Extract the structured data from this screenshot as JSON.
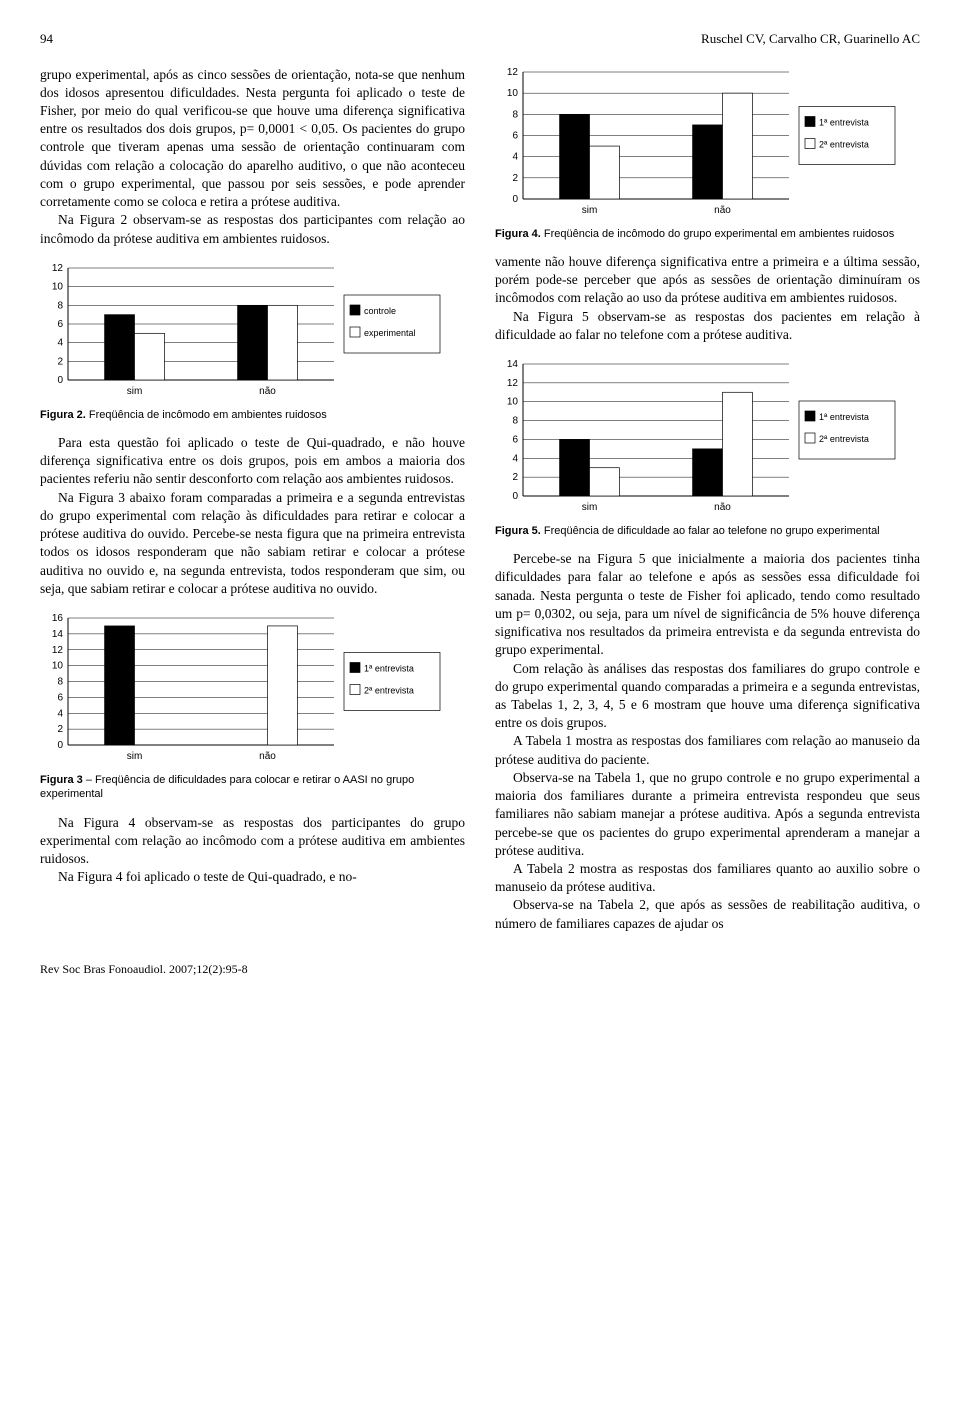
{
  "page_number": "94",
  "authors": "Ruschel CV, Carvalho CR, Guarinello AC",
  "footer": "Rev Soc Bras Fonoaudiol. 2007;12(2):95-8",
  "left_col": {
    "p1": "grupo experimental, após as cinco sessões de orientação, nota-se que nenhum dos idosos apresentou dificuldades. Nesta pergunta foi aplicado o teste de Fisher, por meio do qual verificou-se que houve uma diferença significativa entre os resultados dos dois grupos, p= 0,0001 < 0,05. Os pacientes do grupo controle que tiveram apenas uma sessão de orientação continuaram com dúvidas com relação a colocação do aparelho auditivo, o que não aconteceu com o grupo experimental, que passou por seis sessões, e pode aprender corretamente como se coloca e retira a prótese auditiva.",
    "p2": "Na Figura 2 observam-se as respostas dos participantes com relação ao incômodo da prótese auditiva em ambientes ruidosos.",
    "p3": "Para esta questão foi aplicado o teste de Qui-quadrado, e não houve diferença significativa entre os dois grupos, pois em ambos a maioria dos pacientes referiu não sentir desconforto com relação aos ambientes ruidosos.",
    "p4": "Na Figura 3 abaixo foram comparadas a primeira e a segunda entrevistas do grupo experimental com relação às dificuldades para retirar e colocar a prótese auditiva do ouvido. Percebe-se nesta figura que na primeira entrevista todos os idosos responderam que não sabiam retirar e colocar a prótese auditiva no ouvido e, na segunda entrevista, todos responderam que sim, ou seja, que sabiam retirar e colocar a prótese auditiva no ouvido.",
    "p5": "Na Figura 4 observam-se as respostas dos participantes do grupo experimental com relação ao incômodo com a prótese auditiva em ambientes ruidosos.",
    "p6": "Na Figura 4 foi aplicado o teste de Qui-quadrado, e no-"
  },
  "right_col": {
    "p1": "vamente não houve diferença significativa entre a primeira e a última sessão, porém pode-se perceber que após as sessões de orientação diminuíram os incômodos com relação ao uso da prótese auditiva em ambientes ruidosos.",
    "p2": "Na Figura 5 observam-se as respostas dos pacientes em relação à dificuldade ao falar no telefone com a prótese auditiva.",
    "p3": "Percebe-se na Figura 5 que inicialmente a maioria dos pacientes tinha dificuldades para falar ao telefone e após as sessões essa dificuldade foi sanada. Nesta pergunta o teste de Fisher foi aplicado, tendo como resultado um p= 0,0302, ou seja, para um nível de significância de 5% houve diferença significativa nos resultados da primeira entrevista e da segunda entrevista do grupo experimental.",
    "p4": "Com relação às análises das respostas dos familiares do grupo controle e do grupo experimental quando comparadas a primeira e a segunda entrevistas, as Tabelas 1, 2, 3, 4, 5 e 6 mostram que houve uma diferença significativa entre os dois grupos.",
    "p5": "A Tabela 1 mostra as respostas dos familiares com relação ao manuseio da prótese auditiva do paciente.",
    "p6": "Observa-se na Tabela 1, que no grupo controle e no grupo experimental a maioria dos familiares durante a primeira entrevista respondeu que seus familiares não sabiam manejar a prótese auditiva. Após a segunda entrevista percebe-se que os pacientes do grupo experimental aprenderam a manejar a prótese auditiva.",
    "p7": "A Tabela 2 mostra as respostas dos familiares quanto ao auxilio sobre o manuseio da prótese auditiva.",
    "p8": "Observa-se na Tabela 2, que após as sessões de reabilitação auditiva, o número de familiares capazes de ajudar os"
  },
  "fig2": {
    "caption_bold": "Figura 2.",
    "caption_rest": " Freqüência de incômodo em ambientes ruidosos",
    "type": "bar",
    "categories": [
      "sim",
      "não"
    ],
    "series": [
      {
        "label": "controle",
        "color": "#000000",
        "values": [
          7,
          8
        ]
      },
      {
        "label": "experimental",
        "color": "#ffffff",
        "values": [
          5,
          8
        ]
      }
    ],
    "ylim": [
      0,
      12
    ],
    "ytick_step": 2,
    "bar_width": 0.45,
    "grid_color": "#000000",
    "axis_color": "#000000",
    "font_family": "Arial",
    "tick_fontsize": 10,
    "legend_fontsize": 9
  },
  "fig3": {
    "caption_bold": "Figura 3",
    "caption_rest": " – Freqüência de dificuldades para colocar e retirar o AASI no grupo experimental",
    "type": "bar",
    "categories": [
      "sim",
      "não"
    ],
    "series": [
      {
        "label": "1ª entrevista",
        "color": "#000000",
        "values": [
          15,
          0
        ]
      },
      {
        "label": "2ª entrevista",
        "color": "#ffffff",
        "values": [
          0,
          15
        ]
      }
    ],
    "ylim": [
      0,
      16
    ],
    "ytick_step": 2,
    "bar_width": 0.45,
    "grid_color": "#000000",
    "axis_color": "#000000",
    "font_family": "Arial",
    "tick_fontsize": 10,
    "legend_fontsize": 9
  },
  "fig4": {
    "caption_bold": "Figura 4.",
    "caption_rest": " Freqüência de incômodo do grupo experimental em ambientes ruidosos",
    "type": "bar",
    "categories": [
      "sim",
      "não"
    ],
    "series": [
      {
        "label": "1ª entrevista",
        "color": "#000000",
        "values": [
          8,
          7
        ]
      },
      {
        "label": "2ª entrevista",
        "color": "#ffffff",
        "values": [
          5,
          10
        ]
      }
    ],
    "ylim": [
      0,
      12
    ],
    "ytick_step": 2,
    "bar_width": 0.45,
    "grid_color": "#000000",
    "axis_color": "#000000",
    "font_family": "Arial",
    "tick_fontsize": 10,
    "legend_fontsize": 9
  },
  "fig5": {
    "caption_bold": "Figura 5.",
    "caption_rest": " Freqüência de dificuldade ao falar ao telefone no grupo experimental",
    "type": "bar",
    "categories": [
      "sim",
      "não"
    ],
    "series": [
      {
        "label": "1ª entrevista",
        "color": "#000000",
        "values": [
          6,
          5
        ]
      },
      {
        "label": "2ª entrevista",
        "color": "#ffffff",
        "values": [
          3,
          11
        ]
      }
    ],
    "ylim": [
      0,
      14
    ],
    "ytick_step": 2,
    "bar_width": 0.45,
    "grid_color": "#000000",
    "axis_color": "#000000",
    "font_family": "Arial",
    "tick_fontsize": 10,
    "legend_fontsize": 9
  }
}
